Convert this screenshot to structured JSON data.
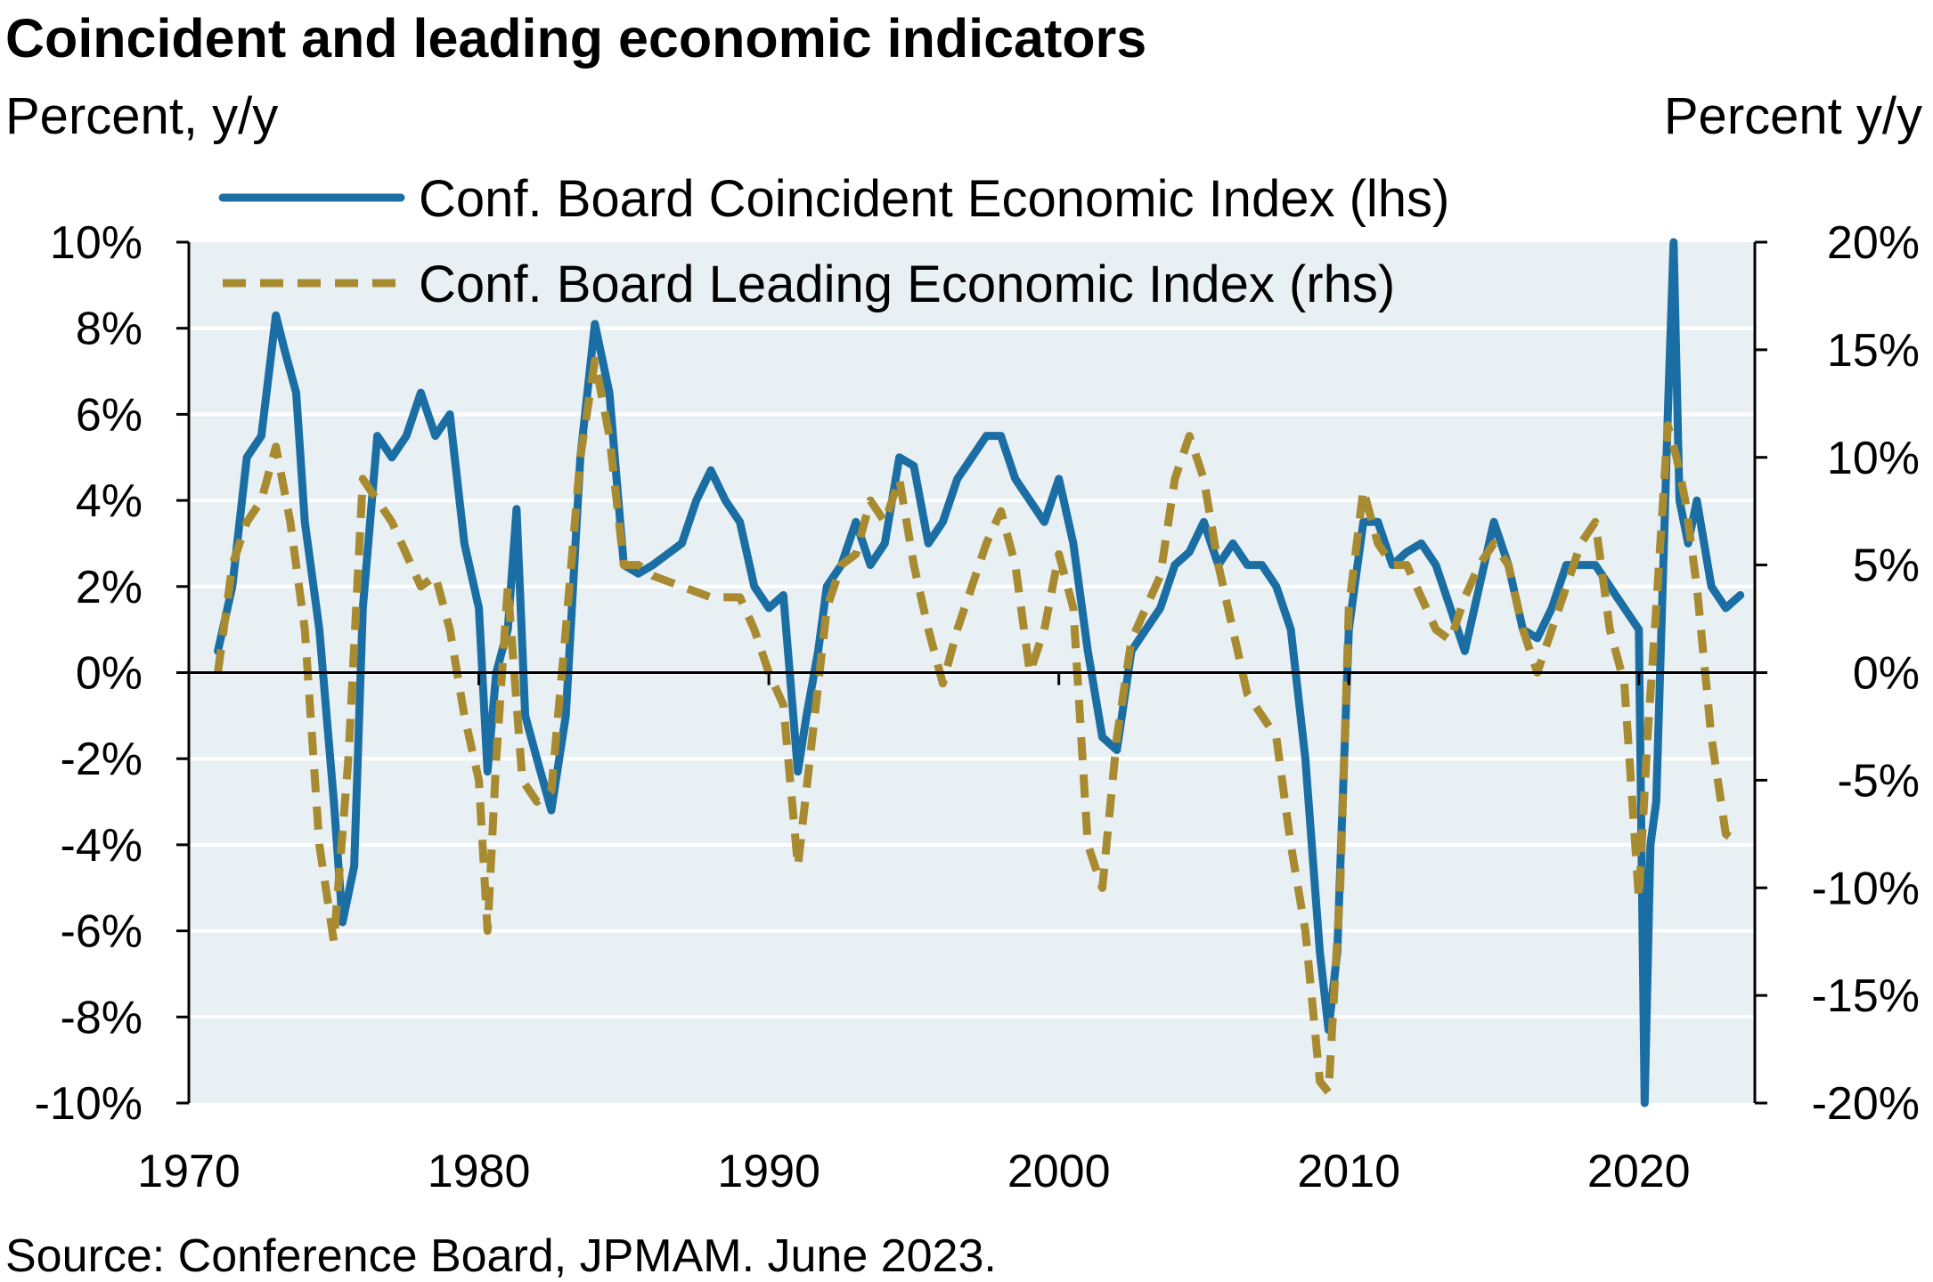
{
  "chart_data": {
    "type": "line",
    "title": "Coincident and leading economic indicators",
    "ylabel_left": "Percent, y/y",
    "ylabel_right": "Percent y/y",
    "source": "Source: Conference Board, JPMAM. June 2023.",
    "xlim": [
      1970,
      2024
    ],
    "ylim_left": [
      -10,
      10
    ],
    "ylim_right": [
      -20,
      20
    ],
    "x_ticks": [
      "1970",
      "1980",
      "1990",
      "2000",
      "2010",
      "2020"
    ],
    "y_ticks_left": [
      "10%",
      "8%",
      "6%",
      "4%",
      "2%",
      "0%",
      "-2%",
      "-4%",
      "-6%",
      "-8%",
      "-10%"
    ],
    "y_ticks_right": [
      "20%",
      "15%",
      "10%",
      "5%",
      "0%",
      "-5%",
      "-10%",
      "-15%",
      "-20%"
    ],
    "grid": true,
    "legend_position": "top",
    "colors": {
      "background": "#e8f0f4",
      "grid": "#ffffff",
      "coincident": "#1a6ea3",
      "leading": "#a88a30"
    },
    "series": [
      {
        "name": "Conf. Board Coincident Economic Index (lhs)",
        "axis": "left",
        "style": "solid",
        "x": [
          1971.0,
          1971.5,
          1972.0,
          1972.5,
          1973.0,
          1973.3,
          1973.7,
          1974.0,
          1974.5,
          1975.0,
          1975.3,
          1975.7,
          1976.0,
          1976.5,
          1977.0,
          1977.5,
          1978.0,
          1978.5,
          1979.0,
          1979.5,
          1980.0,
          1980.3,
          1980.6,
          1981.0,
          1981.3,
          1981.6,
          1982.0,
          1982.5,
          1983.0,
          1983.5,
          1984.0,
          1984.5,
          1985.0,
          1985.5,
          1986.0,
          1987.0,
          1987.5,
          1988.0,
          1988.5,
          1989.0,
          1989.5,
          1990.0,
          1990.5,
          1991.0,
          1991.3,
          1991.7,
          1992.0,
          1992.5,
          1993.0,
          1993.5,
          1994.0,
          1994.5,
          1995.0,
          1995.5,
          1996.0,
          1996.5,
          1997.0,
          1997.5,
          1998.0,
          1998.5,
          1999.0,
          1999.5,
          2000.0,
          2000.5,
          2001.0,
          2001.5,
          2002.0,
          2002.5,
          2003.0,
          2003.5,
          2004.0,
          2004.5,
          2005.0,
          2005.5,
          2006.0,
          2006.5,
          2007.0,
          2007.5,
          2008.0,
          2008.5,
          2009.0,
          2009.3,
          2009.6,
          2010.0,
          2010.5,
          2011.0,
          2011.5,
          2012.0,
          2012.5,
          2013.0,
          2013.5,
          2014.0,
          2014.5,
          2015.0,
          2015.5,
          2016.0,
          2016.5,
          2017.0,
          2017.5,
          2018.0,
          2018.5,
          2019.0,
          2019.5,
          2020.0,
          2020.2,
          2020.4,
          2020.6,
          2021.0,
          2021.2,
          2021.4,
          2021.7,
          2022.0,
          2022.5,
          2023.0,
          2023.5
        ],
        "values": [
          0.5,
          2.0,
          5.0,
          5.5,
          8.3,
          7.5,
          6.5,
          3.5,
          1.0,
          -3.0,
          -5.8,
          -4.5,
          1.5,
          5.5,
          5.0,
          5.5,
          6.5,
          5.5,
          6.0,
          3.0,
          1.5,
          -2.3,
          0.0,
          1.0,
          3.8,
          -1.0,
          -2.0,
          -3.2,
          -1.0,
          5.0,
          8.1,
          6.5,
          2.5,
          2.3,
          2.5,
          3.0,
          4.0,
          4.7,
          4.0,
          3.5,
          2.0,
          1.5,
          1.8,
          -2.3,
          -1.0,
          0.5,
          2.0,
          2.5,
          3.5,
          2.5,
          3.0,
          5.0,
          4.8,
          3.0,
          3.5,
          4.5,
          5.0,
          5.5,
          5.5,
          4.5,
          4.0,
          3.5,
          4.5,
          3.0,
          0.5,
          -1.5,
          -1.8,
          0.5,
          1.0,
          1.5,
          2.5,
          2.8,
          3.5,
          2.5,
          3.0,
          2.5,
          2.5,
          2.0,
          1.0,
          -2.0,
          -6.5,
          -8.3,
          -6.5,
          1.0,
          3.5,
          3.5,
          2.5,
          2.8,
          3.0,
          2.5,
          1.5,
          0.5,
          2.0,
          3.5,
          2.5,
          1.0,
          0.8,
          1.5,
          2.5,
          2.5,
          2.5,
          2.0,
          1.5,
          1.0,
          -10.0,
          -4.0,
          -3.0,
          6.0,
          10.0,
          4.0,
          3.0,
          4.0,
          2.0,
          1.5,
          1.8
        ]
      },
      {
        "name": "Conf. Board Leading Economic Index (rhs)",
        "axis": "right",
        "style": "dashed",
        "x": [
          1971.0,
          1971.5,
          1972.0,
          1972.5,
          1973.0,
          1973.5,
          1974.0,
          1974.5,
          1975.0,
          1975.5,
          1976.0,
          1976.5,
          1977.0,
          1977.5,
          1978.0,
          1978.5,
          1979.0,
          1979.5,
          1980.0,
          1980.3,
          1980.6,
          1981.0,
          1981.5,
          1982.0,
          1982.5,
          1983.0,
          1983.5,
          1984.0,
          1984.5,
          1985.0,
          1985.5,
          1986.0,
          1987.0,
          1988.0,
          1989.0,
          1989.5,
          1990.0,
          1990.5,
          1991.0,
          1991.5,
          1992.0,
          1992.5,
          1993.0,
          1993.5,
          1994.0,
          1994.5,
          1995.0,
          1995.5,
          1996.0,
          1996.5,
          1997.0,
          1997.5,
          1998.0,
          1998.5,
          1999.0,
          1999.5,
          2000.0,
          2000.5,
          2001.0,
          2001.5,
          2002.0,
          2002.5,
          2003.0,
          2003.5,
          2004.0,
          2004.5,
          2005.0,
          2005.5,
          2006.0,
          2006.5,
          2007.0,
          2007.5,
          2008.0,
          2008.5,
          2009.0,
          2009.3,
          2009.7,
          2010.0,
          2010.5,
          2011.0,
          2011.5,
          2012.0,
          2012.5,
          2013.0,
          2013.5,
          2014.0,
          2014.5,
          2015.0,
          2015.5,
          2016.0,
          2016.5,
          2017.0,
          2017.5,
          2018.0,
          2018.5,
          2019.0,
          2019.5,
          2020.0,
          2020.3,
          2020.6,
          2021.0,
          2021.3,
          2021.6,
          2022.0,
          2022.5,
          2023.0,
          2023.5
        ],
        "values": [
          0.0,
          5.0,
          7.0,
          8.0,
          10.5,
          7.0,
          2.0,
          -8.0,
          -12.5,
          -4.0,
          9.0,
          8.0,
          7.0,
          5.5,
          4.0,
          4.5,
          2.0,
          -2.0,
          -5.0,
          -12.0,
          -4.0,
          4.0,
          -5.0,
          -6.0,
          -5.5,
          2.0,
          10.0,
          14.5,
          11.0,
          5.0,
          5.0,
          4.5,
          4.0,
          3.5,
          3.5,
          2.0,
          0.0,
          -1.5,
          -9.0,
          -3.0,
          3.0,
          5.0,
          5.5,
          8.0,
          7.0,
          9.0,
          5.0,
          2.0,
          -0.5,
          2.0,
          4.0,
          6.0,
          7.5,
          5.0,
          0.0,
          2.0,
          5.5,
          3.0,
          -8.0,
          -10.0,
          -3.0,
          1.5,
          3.0,
          4.5,
          9.0,
          11.0,
          9.0,
          5.0,
          2.0,
          -1.0,
          -2.0,
          -3.0,
          -8.0,
          -12.0,
          -19.0,
          -19.5,
          -10.0,
          3.0,
          8.5,
          6.0,
          5.0,
          5.0,
          3.5,
          2.0,
          1.5,
          3.5,
          5.0,
          6.0,
          5.0,
          2.0,
          0.0,
          2.0,
          4.0,
          6.0,
          7.0,
          2.0,
          -0.5,
          -10.5,
          -3.0,
          3.0,
          11.5,
          10.0,
          8.0,
          4.0,
          -3.0,
          -7.5,
          -8.0
        ]
      }
    ]
  }
}
